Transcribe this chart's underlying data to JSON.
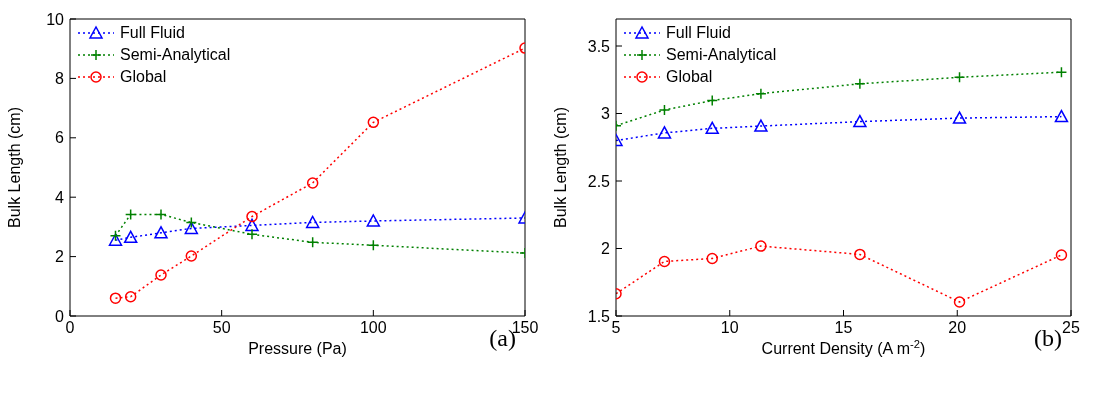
{
  "chart_data": [
    {
      "type": "line",
      "xlabel": "Pressure (Pa)",
      "ylabel": "Bulk Length (cm)",
      "annotations": [
        "(a)"
      ],
      "x": [
        15,
        20,
        30,
        40,
        60,
        80,
        100,
        150
      ],
      "series": [
        {
          "name": "Full Fluid",
          "color": "#0000ff",
          "marker": "triangle",
          "values": [
            2.55,
            2.65,
            2.8,
            2.95,
            3.05,
            3.15,
            3.2,
            3.3
          ]
        },
        {
          "name": "Semi-Analytical",
          "color": "#008000",
          "marker": "cross",
          "values": [
            2.7,
            3.42,
            3.42,
            3.15,
            2.75,
            2.48,
            2.38,
            2.12
          ]
        },
        {
          "name": "Global",
          "color": "#ff0000",
          "marker": "circle",
          "values": [
            0.6,
            0.65,
            1.38,
            2.02,
            3.35,
            4.48,
            6.52,
            9.02
          ]
        }
      ],
      "xlim": [
        0,
        150
      ],
      "xticks": [
        0,
        50,
        100,
        150
      ],
      "ylim": [
        0,
        10
      ],
      "yticks": [
        0,
        2,
        4,
        6,
        8,
        10
      ],
      "grid": false,
      "legend": "top left",
      "line_style": "dotted"
    },
    {
      "type": "line",
      "xlabel": "Current Density (A m$^{-2}$)",
      "ylabel": "Bulk Length (cm)",
      "annotations": [
        "(b)"
      ],
      "x": [
        5.0,
        7.13,
        9.23,
        11.37,
        15.72,
        20.1,
        24.58
      ],
      "series": [
        {
          "name": "Full Fluid",
          "color": "#0000ff",
          "marker": "triangle",
          "values": [
            2.8,
            2.856,
            2.89,
            2.907,
            2.94,
            2.966,
            2.977
          ]
        },
        {
          "name": "Semi-Analytical",
          "color": "#008000",
          "marker": "cross",
          "values": [
            2.91,
            3.026,
            3.096,
            3.147,
            3.22,
            3.268,
            3.306
          ]
        },
        {
          "name": "Global",
          "color": "#ff0000",
          "marker": "circle",
          "values": [
            1.665,
            1.904,
            1.926,
            2.018,
            1.956,
            1.604,
            1.952
          ]
        }
      ],
      "xlim": [
        5,
        25
      ],
      "xticks": [
        5,
        10,
        15,
        20,
        25
      ],
      "ylim": [
        1.5,
        3.7
      ],
      "yticks": [
        1.5,
        2,
        2.5,
        3,
        3.5
      ],
      "grid": false,
      "legend": "top left",
      "line_style": "dotted"
    }
  ]
}
